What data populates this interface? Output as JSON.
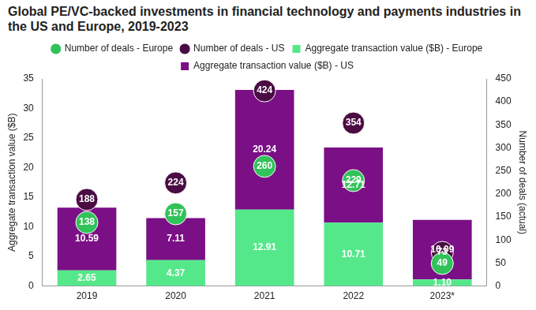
{
  "chart_data": {
    "type": "bar",
    "title": "Global PE/VC-backed investments in financial technology and payments industries in the US and Europe, 2019-2023",
    "categories": [
      "2019",
      "2020",
      "2021",
      "2022",
      "2023*"
    ],
    "stacked": true,
    "data_labels": true,
    "legend": "top",
    "grid": false,
    "ylabel": "Aggregate transaction value ($B)",
    "y2label": "Number of deals (actual)",
    "ylim": [
      0,
      35
    ],
    "yticks": [
      0,
      5,
      10,
      15,
      20,
      25,
      30,
      35
    ],
    "y2lim": [
      0,
      450
    ],
    "y2ticks": [
      0,
      50,
      100,
      150,
      200,
      250,
      300,
      350,
      400,
      450
    ],
    "series": [
      {
        "name": "Aggregate transaction value ($B) - Europe",
        "type": "bar",
        "color": "#55e88a",
        "values": [
          2.65,
          4.37,
          12.91,
          10.71,
          1.1
        ],
        "value_labels": [
          "2.65",
          "4.37",
          "12.91",
          "10.71",
          "1.10"
        ]
      },
      {
        "name": "Aggregate transaction value ($B) - US",
        "type": "bar",
        "color": "#7b0f86",
        "values": [
          10.59,
          7.11,
          20.24,
          12.71,
          10.09
        ]
      },
      {
        "name": "Number of deals - Europe",
        "type": "scatter",
        "marker": "circle",
        "axis": "y2",
        "color": "#32c25a",
        "values": [
          138,
          157,
          260,
          229,
          49
        ]
      },
      {
        "name": "Number of deals - US",
        "type": "scatter",
        "marker": "circle",
        "axis": "y2",
        "color": "#4a0c42",
        "values": [
          188,
          224,
          424,
          354,
          73
        ]
      }
    ]
  }
}
